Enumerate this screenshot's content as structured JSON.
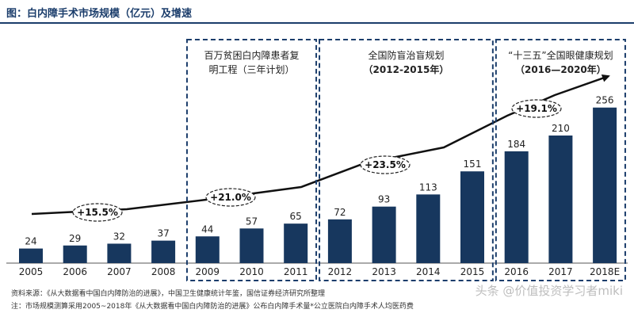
{
  "title": "图：白内障手术市场规模（亿元）及增速",
  "sources": {
    "line1": "资料来源：《从大数据看中国白内障防治的进展》，中国卫生健康统计年鉴，国信证券经济研究所整理",
    "line2": "注：市场规模测算采用2005~2018年《从大数据看中国白内障防治的进展》公布白内障手术量*公立医院白内障手术人均医药费"
  },
  "watermark": "头条 @价值投资学习者miki",
  "chart_data": {
    "type": "bar",
    "categories": [
      "2005",
      "2006",
      "2007",
      "2008",
      "2009",
      "2010",
      "2011",
      "2012",
      "2013",
      "2014",
      "2015",
      "2016",
      "2017",
      "2018E"
    ],
    "values": [
      24,
      29,
      32,
      37,
      44,
      57,
      65,
      72,
      93,
      113,
      151,
      184,
      210,
      256
    ],
    "ylim": [
      0,
      300
    ],
    "bar_color": "#17375e",
    "periods": [
      {
        "label": "百万贫困白内障患者复明工程（三年计划）",
        "from": "2009",
        "to": "2011"
      },
      {
        "label": "全国防盲治盲规划（2012-2015年）",
        "from": "2012",
        "to": "2015"
      },
      {
        "label": "“十三五”全国眼健康规划（2016—2020年）",
        "from": "2016",
        "to": "2018E"
      }
    ],
    "growth_labels": [
      "+15.5%",
      "+21.0%",
      "+23.5%",
      "+19.1%"
    ]
  }
}
